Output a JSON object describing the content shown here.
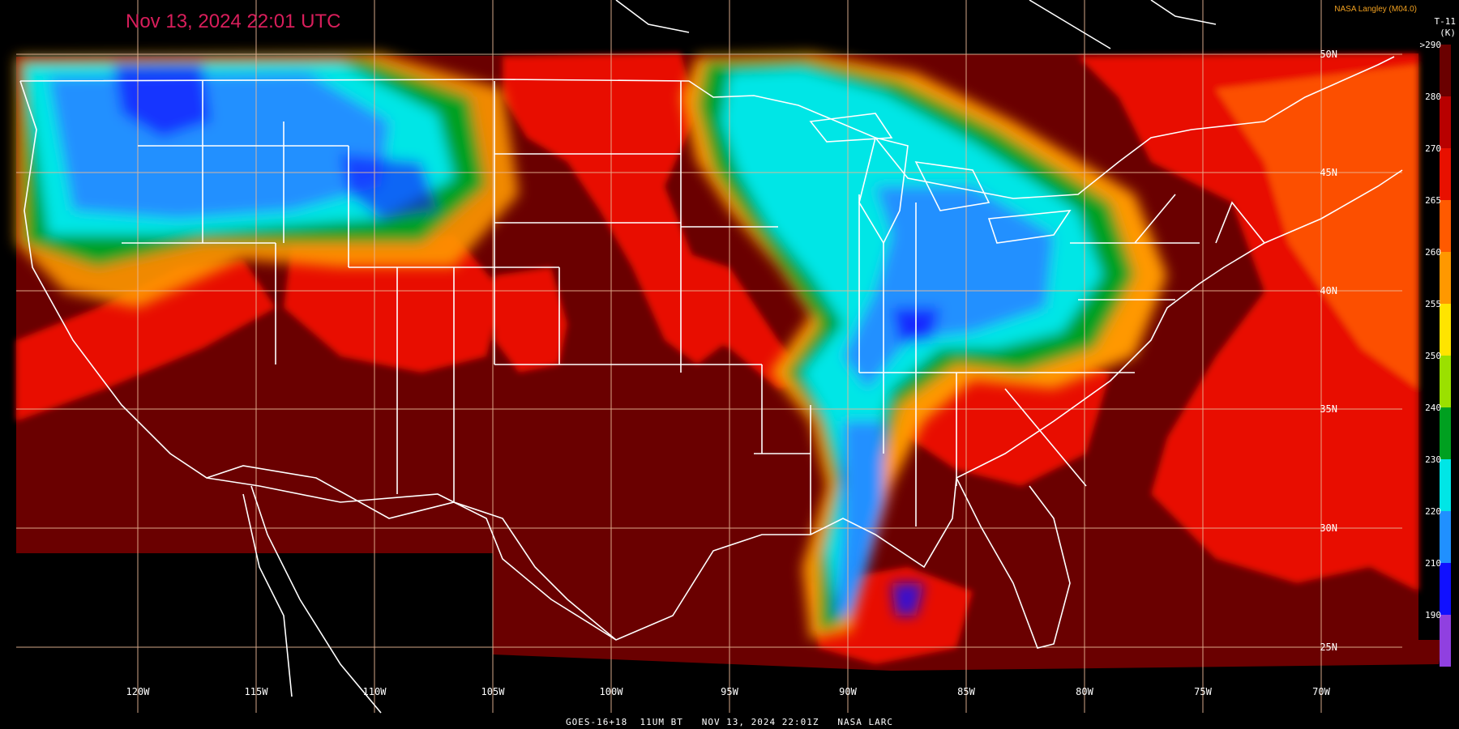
{
  "header": {
    "timestamp": "Nov 13, 2024 22:01 UTC",
    "credit": "NASA Langley (M04.0)",
    "product": "T-11",
    "unit": "(K)"
  },
  "footer": {
    "caption": "GOES-16+18  11UM BT   NOV 13, 2024 22:01Z   NASA LARC"
  },
  "grid": {
    "longitude_labels": [
      "120W",
      "115W",
      "110W",
      "105W",
      "100W",
      "95W",
      "90W",
      "85W",
      "80W",
      "75W",
      "70W"
    ],
    "latitude_labels": [
      "50N",
      "45N",
      "40N",
      "35N",
      "30N",
      "25N"
    ]
  },
  "colorbar": {
    "labels": [
      ">290",
      "280",
      "270",
      "265",
      "260",
      "255",
      "250",
      "240",
      "230",
      "220",
      "210",
      "190"
    ],
    "colors": [
      "#6a0000",
      "#b80000",
      "#e81000",
      "#ff5a00",
      "#ff9800",
      "#ffe400",
      "#9be000",
      "#00a020",
      "#00e6e6",
      "#2090ff",
      "#1010ff",
      "#9040e0"
    ]
  },
  "colors": {
    "warm_dark": "#6a0000",
    "warm": "#e81000",
    "orange": "#ff5a00",
    "green": "#00a020",
    "cyan": "#00e6e6",
    "blue": "#2090ff",
    "deep_blue": "#1010ff",
    "timestamp": "#d81e5b",
    "credit": "#f0a020"
  }
}
